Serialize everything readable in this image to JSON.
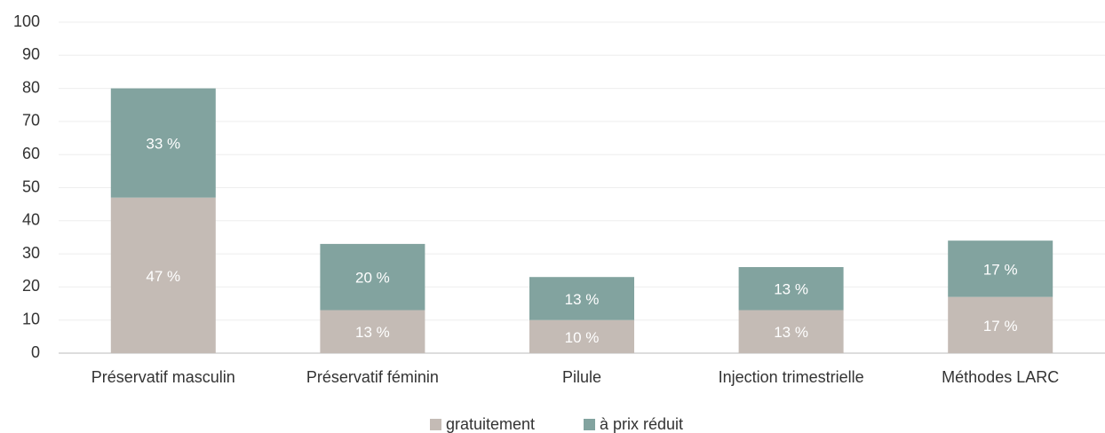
{
  "chart_data": {
    "type": "stacked_bar",
    "categories": [
      "Préservatif masculin",
      "Préservatif féminin",
      "Pilule",
      "Injection trimestrielle",
      "Méthodes LARC"
    ],
    "series": [
      {
        "name": "gratuitement",
        "color": "#c4bbb5",
        "values": [
          47,
          13,
          10,
          13,
          17
        ],
        "value_labels": [
          "47 %",
          "13 %",
          "10 %",
          "13 %",
          "17 %"
        ]
      },
      {
        "name": "à prix réduit",
        "color": "#82a39f",
        "values": [
          33,
          20,
          13,
          13,
          17
        ],
        "value_labels": [
          "33 %",
          "20 %",
          "13 %",
          "13 %",
          "17 %"
        ]
      }
    ],
    "ylim": [
      0,
      100
    ],
    "yticks": [
      0,
      10,
      20,
      30,
      40,
      50,
      60,
      70,
      80,
      90,
      100
    ],
    "grid": true,
    "legend": "bottom"
  }
}
